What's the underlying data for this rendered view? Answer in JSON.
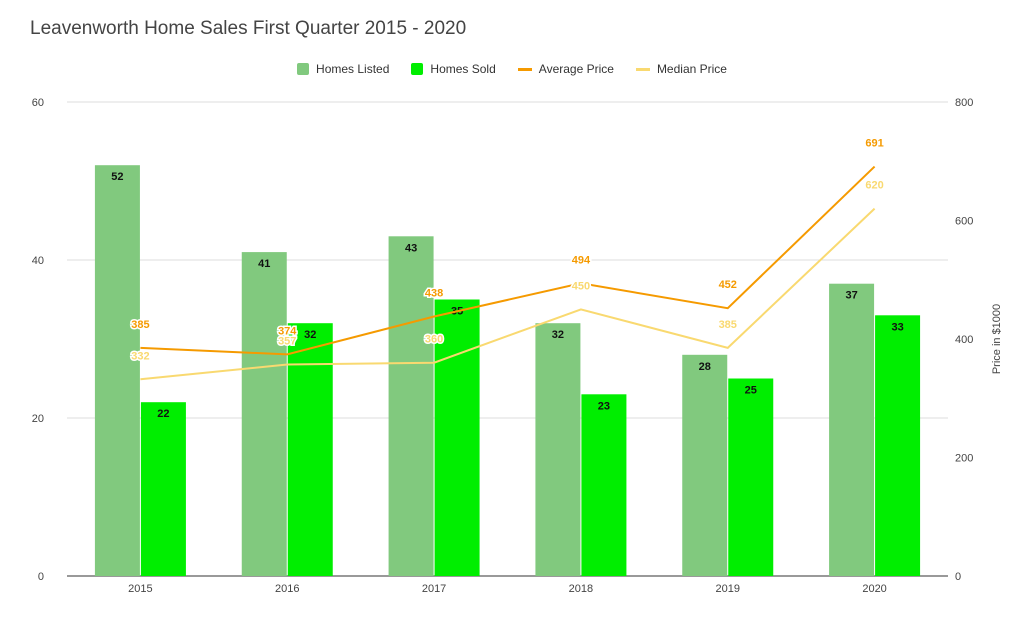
{
  "chart_data": {
    "type": "bar",
    "title": "Leavenworth Home Sales First Quarter 2015 - 2020",
    "categories": [
      "2015",
      "2016",
      "2017",
      "2018",
      "2019",
      "2020"
    ],
    "series": [
      {
        "name": "Homes Listed",
        "kind": "bar",
        "axis": "left",
        "color": "#81c97e",
        "values": [
          52,
          41,
          43,
          32,
          28,
          37
        ]
      },
      {
        "name": "Homes Sold",
        "kind": "bar",
        "axis": "left",
        "color": "#00ee00",
        "values": [
          22,
          32,
          35,
          23,
          25,
          33
        ]
      },
      {
        "name": "Average Price",
        "kind": "line",
        "axis": "right",
        "color": "#f59a00",
        "values": [
          385,
          374,
          438,
          494,
          452,
          691
        ]
      },
      {
        "name": "Median Price",
        "kind": "line",
        "axis": "right",
        "color": "#f9d970",
        "values": [
          332,
          357,
          360,
          450,
          385,
          620
        ]
      }
    ],
    "y_left": {
      "min": 0,
      "max": 60,
      "ticks": [
        0,
        20,
        40,
        60
      ]
    },
    "y_right": {
      "min": 0,
      "max": 800,
      "ticks": [
        0,
        200,
        400,
        600,
        800
      ],
      "label": "Price in $1000"
    },
    "grid": true,
    "legend_position": "top"
  }
}
